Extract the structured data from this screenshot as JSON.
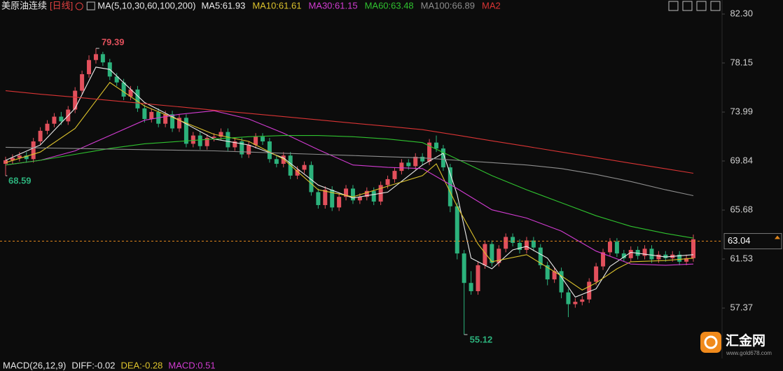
{
  "header": {
    "title": "美原油连续",
    "period": "[日线]",
    "ma_params": "MA(5,10,30,60,100,200)"
  },
  "chart_data": {
    "type": "candlestick",
    "up_color": "#e2505c",
    "down_color": "#2cb27c",
    "ylim": [
      53.22,
      83.49
    ],
    "yticks": [
      {
        "value": 82.3,
        "label": "82.30"
      },
      78.15,
      73.99,
      69.84,
      65.68,
      61.53,
      57.37
    ],
    "open": [
      69.6,
      69.9,
      70.1,
      70.3,
      70.0,
      71.5,
      72.4,
      73.0,
      73.6,
      73.2,
      74.2,
      75.8,
      77.2,
      78.4,
      78.9,
      78.2,
      77.0,
      76.5,
      75.3,
      75.9,
      74.3,
      73.4,
      74.0,
      73.0,
      73.8,
      72.6,
      73.5,
      71.3,
      72.0,
      71.1,
      71.8,
      71.9,
      72.3,
      71.0,
      71.5,
      70.4,
      71.2,
      71.9,
      71.5,
      70.0,
      69.6,
      70.3,
      68.6,
      69.1,
      69.5,
      67.2,
      66.1,
      67.4,
      65.9,
      66.8,
      67.5,
      66.5,
      66.8,
      67.3,
      66.4,
      67.8,
      68.3,
      69.0,
      69.7,
      69.4,
      70.2,
      69.8,
      71.4,
      70.9,
      69.3,
      66.0,
      62.0,
      59.5,
      58.8,
      61.0,
      62.8,
      61.2,
      62.4,
      63.4,
      62.9,
      62.3,
      63.1,
      62.5,
      61.0,
      59.8,
      60.5,
      58.7,
      57.7,
      57.9,
      58.1,
      59.6,
      60.9,
      62.1,
      63.0,
      62.0,
      61.6,
      62.3,
      61.8,
      62.4,
      61.5,
      61.9,
      61.6,
      61.9,
      61.3,
      61.6
    ],
    "high": [
      70.2,
      70.4,
      70.6,
      70.6,
      71.8,
      72.7,
      73.3,
      73.9,
      74.0,
      74.5,
      76.1,
      77.5,
      78.8,
      79.39,
      79.1,
      78.5,
      77.3,
      76.8,
      76.2,
      76.2,
      74.6,
      74.3,
      74.3,
      74.1,
      74.1,
      73.8,
      73.8,
      72.3,
      72.3,
      72.1,
      72.2,
      72.6,
      72.6,
      71.8,
      71.8,
      71.5,
      72.2,
      72.2,
      71.8,
      70.3,
      70.6,
      70.6,
      69.4,
      69.8,
      69.8,
      67.5,
      67.7,
      67.7,
      67.1,
      67.8,
      67.8,
      67.1,
      67.6,
      67.6,
      68.1,
      68.6,
      69.3,
      70.0,
      70.0,
      70.5,
      70.5,
      71.7,
      72.0,
      71.2,
      69.6,
      66.3,
      62.3,
      60.5,
      61.3,
      63.1,
      63.1,
      62.7,
      63.7,
      63.7,
      63.2,
      63.4,
      63.4,
      62.8,
      61.3,
      60.8,
      60.8,
      59.0,
      58.2,
      58.4,
      59.9,
      61.2,
      62.4,
      63.3,
      63.3,
      62.3,
      62.6,
      62.6,
      62.7,
      62.7,
      62.2,
      62.2,
      62.2,
      62.2,
      61.9,
      63.6
    ],
    "low": [
      68.59,
      69.6,
      69.8,
      69.7,
      69.7,
      71.2,
      72.1,
      72.7,
      72.9,
      72.9,
      73.9,
      75.5,
      76.9,
      78.1,
      77.9,
      76.7,
      76.2,
      75.0,
      75.0,
      74.0,
      73.1,
      73.1,
      72.7,
      72.7,
      72.3,
      72.3,
      71.0,
      71.0,
      70.8,
      70.8,
      71.5,
      71.6,
      70.7,
      70.7,
      70.1,
      70.1,
      70.9,
      71.2,
      69.7,
      69.3,
      69.3,
      68.3,
      68.3,
      68.8,
      66.9,
      65.8,
      65.8,
      65.6,
      65.6,
      66.5,
      66.2,
      66.2,
      66.5,
      66.1,
      66.1,
      67.5,
      68.0,
      68.7,
      69.1,
      69.1,
      69.5,
      69.5,
      70.6,
      69.0,
      65.5,
      61.5,
      55.12,
      58.5,
      58.5,
      60.7,
      60.9,
      60.9,
      62.1,
      62.6,
      62.0,
      62.0,
      62.2,
      60.7,
      59.3,
      59.5,
      58.2,
      56.6,
      57.4,
      57.6,
      57.8,
      59.3,
      60.6,
      61.8,
      61.7,
      61.3,
      61.3,
      61.5,
      61.5,
      61.2,
      61.2,
      61.3,
      61.3,
      61.0,
      61.0,
      61.3
    ],
    "close": [
      69.9,
      70.1,
      70.3,
      70.0,
      71.5,
      72.4,
      73.0,
      73.6,
      73.2,
      74.2,
      75.8,
      77.2,
      78.4,
      78.9,
      78.2,
      77.0,
      76.5,
      75.3,
      75.9,
      74.3,
      73.4,
      74.0,
      73.0,
      73.8,
      72.6,
      73.5,
      71.3,
      72.0,
      71.1,
      71.8,
      71.9,
      72.3,
      71.0,
      71.5,
      70.4,
      71.2,
      71.9,
      71.5,
      70.0,
      69.6,
      70.3,
      68.6,
      69.1,
      69.5,
      67.2,
      66.1,
      67.4,
      65.9,
      66.8,
      67.5,
      66.5,
      66.8,
      67.3,
      66.4,
      67.8,
      68.3,
      69.0,
      69.7,
      69.4,
      70.2,
      69.8,
      71.4,
      70.9,
      69.3,
      66.0,
      62.0,
      59.5,
      58.8,
      61.0,
      62.8,
      61.2,
      62.4,
      63.4,
      62.9,
      62.3,
      63.1,
      62.5,
      61.0,
      59.8,
      60.5,
      58.7,
      57.7,
      57.9,
      58.1,
      59.6,
      60.9,
      62.1,
      63.0,
      62.0,
      61.6,
      62.3,
      61.8,
      62.4,
      61.5,
      61.9,
      61.6,
      61.9,
      61.3,
      61.6,
      63.2
    ],
    "series": [
      {
        "name": "MA5:61.93",
        "color": "#ececec",
        "x": [
          0,
          5,
          10,
          13,
          15,
          20,
          25,
          30,
          35,
          40,
          45,
          50,
          55,
          60,
          63,
          65,
          67,
          70,
          73,
          75,
          78,
          80,
          82,
          85,
          87,
          90,
          95,
          99
        ],
        "values": [
          69.9,
          71.2,
          74.3,
          77.8,
          77.6,
          74.8,
          73.3,
          71.7,
          71.2,
          70.1,
          67.8,
          66.7,
          67.2,
          69.5,
          70.5,
          67.0,
          61.6,
          60.7,
          62.3,
          62.6,
          61.6,
          60.0,
          58.3,
          59.0,
          60.9,
          62.1,
          61.7,
          61.9
        ]
      },
      {
        "name": "MA10:61.61",
        "color": "#dcc22c",
        "x": [
          0,
          5,
          10,
          15,
          20,
          25,
          30,
          35,
          40,
          45,
          50,
          55,
          60,
          62,
          65,
          68,
          70,
          75,
          80,
          83,
          85,
          88,
          90,
          95,
          99
        ],
        "values": [
          69.7,
          70.6,
          72.6,
          76.5,
          74.5,
          73.3,
          72.1,
          71.5,
          70.0,
          67.4,
          66.8,
          67.7,
          68.6,
          69.6,
          66.0,
          62.8,
          61.3,
          61.9,
          60.1,
          58.9,
          59.5,
          60.7,
          61.3,
          61.4,
          61.6
        ]
      },
      {
        "name": "MA30:61.15",
        "color": "#d23cd2",
        "x": [
          0,
          5,
          10,
          15,
          20,
          25,
          30,
          35,
          40,
          45,
          50,
          55,
          60,
          65,
          70,
          75,
          80,
          85,
          90,
          95,
          99
        ],
        "values": [
          69.5,
          69.9,
          70.7,
          72.0,
          73.3,
          73.8,
          74.1,
          73.4,
          72.2,
          70.8,
          69.5,
          69.3,
          69.2,
          67.5,
          65.7,
          65.0,
          63.9,
          62.2,
          61.1,
          61.0,
          61.1
        ]
      },
      {
        "name": "MA60:63.48",
        "color": "#2fc22f",
        "x": [
          0,
          5,
          10,
          15,
          20,
          25,
          30,
          35,
          40,
          45,
          50,
          55,
          60,
          65,
          70,
          75,
          80,
          85,
          90,
          95,
          99
        ],
        "values": [
          69.5,
          69.9,
          70.4,
          70.9,
          71.3,
          71.5,
          71.7,
          71.9,
          72.0,
          72.0,
          71.9,
          71.7,
          71.4,
          70.0,
          68.6,
          67.4,
          66.3,
          65.2,
          64.3,
          63.7,
          63.3
        ]
      },
      {
        "name": "MA100:66.89",
        "color": "#8e8e8e",
        "x": [
          0,
          5,
          10,
          15,
          20,
          25,
          30,
          35,
          40,
          45,
          50,
          55,
          60,
          65,
          70,
          75,
          80,
          85,
          90,
          95,
          99
        ],
        "values": [
          71.0,
          70.95,
          70.9,
          70.85,
          70.8,
          70.75,
          70.7,
          70.6,
          70.5,
          70.4,
          70.3,
          70.2,
          70.1,
          69.9,
          69.7,
          69.5,
          69.2,
          68.7,
          68.1,
          67.4,
          66.9
        ]
      },
      {
        "name": "MA2",
        "color": "#d83434",
        "x": [
          0,
          5,
          10,
          15,
          20,
          25,
          30,
          35,
          40,
          45,
          50,
          55,
          60,
          65,
          70,
          75,
          80,
          85,
          90,
          95,
          99
        ],
        "values": [
          75.8,
          75.5,
          75.25,
          74.98,
          74.7,
          74.43,
          74.15,
          73.88,
          73.6,
          73.33,
          73.05,
          72.78,
          72.5,
          72.03,
          71.55,
          71.08,
          70.6,
          70.13,
          69.65,
          69.18,
          68.8
        ]
      }
    ],
    "last_price": 63.04
  },
  "footer": {
    "macd": "MACD(26,12,9)",
    "diff": "DIFF:-0.02",
    "dea": "DEA:-0.28",
    "macd_value": "MACD:0.51"
  },
  "logo": {
    "name": "汇金网",
    "url": "www.gold678.com"
  }
}
